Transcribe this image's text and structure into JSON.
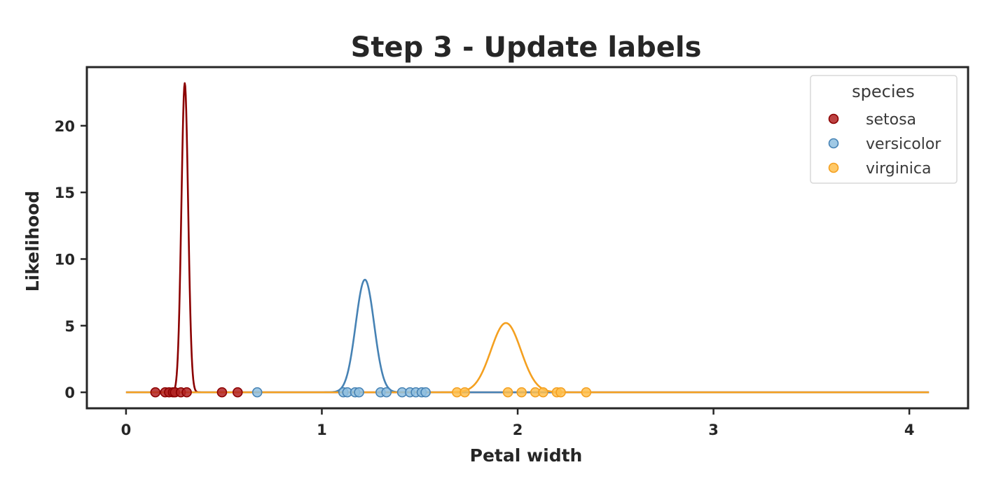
{
  "chart_data": {
    "type": "line",
    "title": "Step 3 - Update labels",
    "xlabel": "Petal width",
    "ylabel": "Likelihood",
    "xlim": [
      -0.2,
      4.3
    ],
    "ylim": [
      -1.2,
      24.4
    ],
    "xticks": [
      0,
      1,
      2,
      3,
      4
    ],
    "xtick_labels": [
      "0",
      "1",
      "2",
      "3",
      "4"
    ],
    "yticks": [
      0,
      5,
      10,
      15,
      20
    ],
    "ytick_labels": [
      "0",
      "5",
      "10",
      "15",
      "20"
    ],
    "grid": false,
    "legend": {
      "title": "species",
      "position": "top-right"
    },
    "series": [
      {
        "name": "setosa",
        "color": "#8b0000",
        "point_color": "#b22222",
        "curve": {
          "mean": 0.3,
          "sd": 0.0172,
          "peak": 23.2,
          "x_range": [
            0.0,
            4.1
          ]
        },
        "points_x": [
          0.15,
          0.2,
          0.22,
          0.24,
          0.25,
          0.28,
          0.31,
          0.49,
          0.57
        ]
      },
      {
        "name": "versicolor",
        "color": "#4682b4",
        "point_color": "#8fbfe0",
        "curve": {
          "mean": 1.22,
          "sd": 0.047,
          "peak": 8.45,
          "x_range": [
            0.0,
            4.1
          ]
        },
        "points_x": [
          0.67,
          1.11,
          1.13,
          1.17,
          1.19,
          1.3,
          1.33,
          1.41,
          1.45,
          1.48,
          1.51,
          1.53
        ]
      },
      {
        "name": "virginica",
        "color": "#f4a020",
        "point_color": "#ffc04d",
        "curve": {
          "mean": 1.94,
          "sd": 0.0766,
          "peak": 5.2,
          "x_range": [
            0.0,
            4.1
          ]
        },
        "points_x": [
          1.69,
          1.73,
          1.95,
          2.02,
          2.09,
          2.13,
          2.2,
          2.22,
          2.35
        ]
      }
    ]
  }
}
